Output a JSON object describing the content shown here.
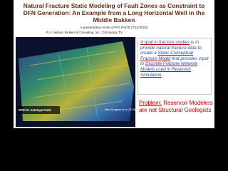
{
  "slide": {
    "title": "Natural Fracture Static Modeling of Fault Zones as Constraint to DFN Generation: An Example from a Long Horizontal Well in the Middle Bakken",
    "subtitle": "A presentation to the AAPG PSGD (7/11/2023)",
    "author": "R.A. Nelson, Broken N Consulting, Inc., Cat Spring, TX.",
    "figure": {
      "label": "DFN for Antelope Field",
      "credit": "After Burgess et al (2023)"
    },
    "goal": {
      "segments": [
        {
          "text": "A goal in fracture studies",
          "underline": true
        },
        {
          "text": " is to provide natural fracture data to create a ",
          "underline": false
        },
        {
          "text": "Static Conceptual Fracture Model",
          "underline": true
        },
        {
          "text": " that provides input to ",
          "underline": false
        },
        {
          "text": "Discrete Fracture Network Models used in Reservoir Simulation",
          "underline": true
        },
        {
          "text": ".",
          "underline": false
        }
      ]
    },
    "problem": {
      "label": "Problem:",
      "text": "Reservoir Modelers are not Structural Geologists"
    }
  }
}
